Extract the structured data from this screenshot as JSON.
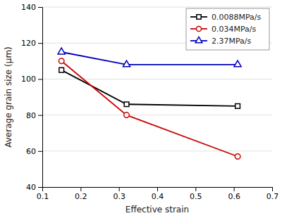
{
  "chart_data": {
    "type": "line",
    "x": [
      0.15,
      0.32,
      0.61
    ],
    "series": [
      {
        "name": "0.0088MPa/s",
        "color": "#000000",
        "marker": "square",
        "line_style": "solid",
        "values": [
          105,
          86,
          85
        ]
      },
      {
        "name": "0.034MPa/s",
        "color": "#cc0000",
        "marker": "circle",
        "line_style": "solid",
        "values": [
          110,
          80,
          57
        ]
      },
      {
        "name": "2.37MPa/s",
        "color": "#0000bb",
        "marker": "triangle",
        "line_style": "solid",
        "values": [
          115,
          108,
          108
        ]
      }
    ],
    "x_label": "Effective strain",
    "y_label": "Average grain size (μm)",
    "xlim": [
      0.1,
      0.7
    ],
    "ylim": [
      40,
      140
    ],
    "xticks": [
      0.1,
      0.2,
      0.3,
      0.4,
      0.5,
      0.6,
      0.7
    ],
    "yticks": [
      40,
      60,
      80,
      100,
      120,
      140
    ],
    "grid": true,
    "legend": "upper right"
  }
}
